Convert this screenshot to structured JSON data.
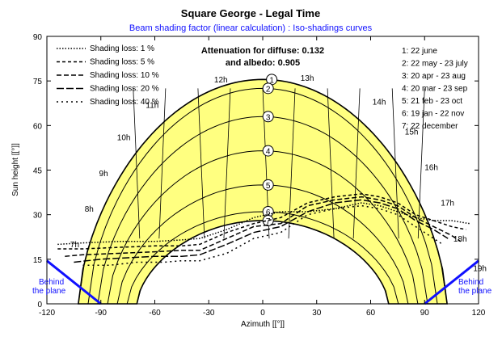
{
  "chart_data": {
    "type": "line",
    "title": "Square George - Legal Time",
    "subtitle": "Beam shading factor (linear calculation) : Iso-shadings curves",
    "xlabel": "Azimuth [[°]]",
    "ylabel": "Sun height [[°]]",
    "xlim": [
      -120,
      120
    ],
    "ylim": [
      0,
      90
    ],
    "xticks": [
      -120,
      -90,
      -60,
      -30,
      0,
      30,
      60,
      90,
      120
    ],
    "yticks": [
      0,
      15,
      30,
      45,
      60,
      75,
      90
    ],
    "attenuation": [
      "Attenuation for diffuse: 0.132",
      "and albedo: 0.905"
    ],
    "legend_loss": [
      "Shading loss: 1 %",
      "Shading loss: 5 %",
      "Shading loss: 10 %",
      "Shading loss: 20 %",
      "Shading loss: 40 %"
    ],
    "legend_dates": [
      "1: 22 june",
      "2: 22 may - 23 july",
      "3: 20 apr - 23 aug",
      "4: 20 mar - 23 sep",
      "5: 21 feb - 23 oct",
      "6: 19 jan - 22 nov",
      "7: 22 december"
    ],
    "behind_plane_label": [
      "Behind",
      "the plane"
    ],
    "sun_paths": [
      {
        "name": "1",
        "noon_height": 75.5
      },
      {
        "name": "2",
        "noon_height": 72.5
      },
      {
        "name": "3",
        "noon_height": 63
      },
      {
        "name": "4",
        "noon_height": 51.5
      },
      {
        "name": "5",
        "noon_height": 40
      },
      {
        "name": "6",
        "noon_height": 31
      },
      {
        "name": "7",
        "noon_height": 28
      }
    ],
    "hour_labels": [
      {
        "label": "7h",
        "az": -107,
        "h": 19
      },
      {
        "label": "8h",
        "az": -99,
        "h": 31
      },
      {
        "label": "9h",
        "az": -91,
        "h": 43
      },
      {
        "label": "10h",
        "az": -81,
        "h": 55
      },
      {
        "label": "11h",
        "az": -65,
        "h": 66
      },
      {
        "label": "12h",
        "az": -27,
        "h": 74.5
      },
      {
        "label": "13h",
        "az": 21,
        "h": 75
      },
      {
        "label": "14h",
        "az": 61,
        "h": 67
      },
      {
        "label": "15h",
        "az": 79,
        "h": 57
      },
      {
        "label": "16h",
        "az": 90,
        "h": 45
      },
      {
        "label": "17h",
        "az": 99,
        "h": 33
      },
      {
        "label": "18h",
        "az": 106,
        "h": 21
      },
      {
        "label": "19h",
        "az": 117,
        "h": 11
      }
    ],
    "shading_curves": [
      {
        "name": "Shading loss: 1 %",
        "points": [
          [
            -114,
            20
          ],
          [
            -100,
            20.5
          ],
          [
            -80,
            21
          ],
          [
            -60,
            21
          ],
          [
            -45,
            21.5
          ],
          [
            -35,
            22
          ],
          [
            -20,
            25
          ],
          [
            -5,
            29
          ],
          [
            10,
            31
          ],
          [
            25,
            31
          ],
          [
            40,
            32
          ],
          [
            55,
            34
          ],
          [
            65,
            33
          ],
          [
            75,
            31
          ],
          [
            85,
            29
          ],
          [
            95,
            28
          ],
          [
            105,
            28
          ],
          [
            115,
            27
          ]
        ]
      },
      {
        "name": "Shading loss: 5 %",
        "points": [
          [
            -114,
            18.5
          ],
          [
            -100,
            18.5
          ],
          [
            -80,
            19
          ],
          [
            -60,
            19.5
          ],
          [
            -45,
            19.5
          ],
          [
            -35,
            20
          ],
          [
            -20,
            24
          ],
          [
            -5,
            27
          ],
          [
            10,
            29
          ],
          [
            25,
            34
          ],
          [
            40,
            36
          ],
          [
            55,
            37
          ],
          [
            65,
            36
          ],
          [
            75,
            34
          ],
          [
            85,
            30
          ],
          [
            95,
            28
          ],
          [
            105,
            26
          ],
          [
            113,
            25
          ]
        ]
      },
      {
        "name": "Shading loss: 10 %",
        "points": [
          [
            -110,
            16
          ],
          [
            -100,
            16.5
          ],
          [
            -80,
            17
          ],
          [
            -60,
            17.5
          ],
          [
            -45,
            18
          ],
          [
            -35,
            18
          ],
          [
            -20,
            22
          ],
          [
            -5,
            26
          ],
          [
            10,
            27
          ],
          [
            25,
            33
          ],
          [
            40,
            35
          ],
          [
            55,
            36
          ],
          [
            65,
            35
          ],
          [
            75,
            33
          ],
          [
            85,
            29
          ],
          [
            95,
            26
          ],
          [
            105,
            23
          ],
          [
            110,
            21
          ]
        ]
      },
      {
        "name": "Shading loss: 20 %",
        "points": [
          [
            -105,
            14
          ],
          [
            -90,
            15
          ],
          [
            -75,
            15.5
          ],
          [
            -60,
            16
          ],
          [
            -45,
            16
          ],
          [
            -35,
            16.5
          ],
          [
            -20,
            20
          ],
          [
            -5,
            24
          ],
          [
            10,
            26
          ],
          [
            25,
            31
          ],
          [
            40,
            34
          ],
          [
            55,
            35
          ],
          [
            65,
            34
          ],
          [
            75,
            32
          ],
          [
            85,
            28
          ],
          [
            95,
            25
          ],
          [
            103,
            22
          ]
        ]
      },
      {
        "name": "Shading loss: 40 %",
        "points": [
          [
            -100,
            13
          ],
          [
            -85,
            13
          ],
          [
            -70,
            14
          ],
          [
            -55,
            14
          ],
          [
            -45,
            14.5
          ],
          [
            -35,
            14.5
          ],
          [
            -20,
            17
          ],
          [
            -5,
            22
          ],
          [
            10,
            24
          ],
          [
            25,
            30
          ],
          [
            40,
            32
          ],
          [
            55,
            33
          ],
          [
            65,
            32
          ],
          [
            75,
            30
          ],
          [
            85,
            26
          ],
          [
            95,
            22
          ],
          [
            100,
            20
          ]
        ]
      }
    ],
    "plane_line": {
      "left": [
        [
          -120,
          14.5
        ],
        [
          -90,
          0
        ]
      ],
      "right": [
        [
          90,
          0
        ],
        [
          120,
          14.5
        ]
      ]
    },
    "colors": {
      "band": "#ffff80",
      "plane": "#1010ff",
      "title": "#000000",
      "subtitle": "#1010ff"
    }
  }
}
